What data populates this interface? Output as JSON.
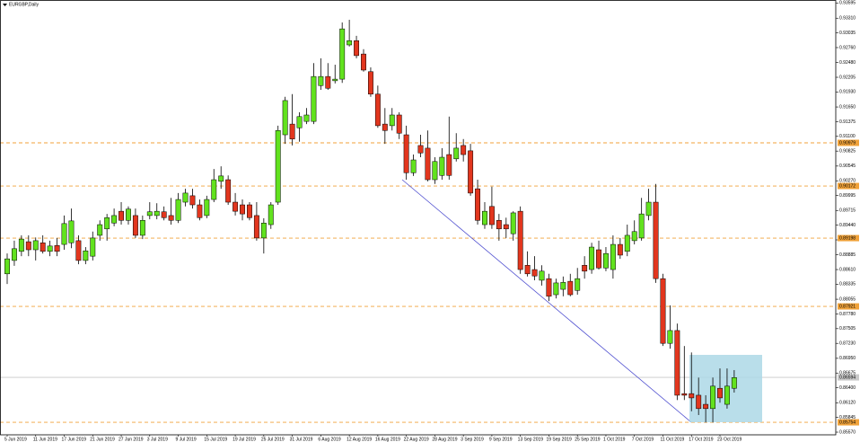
{
  "chart_data": {
    "type": "candlestick",
    "title": "EURGBP,Daily",
    "categories": [
      "5 Jun 2019",
      null,
      null,
      null,
      "11 Jun 2019",
      null,
      null,
      null,
      "17 Jun 2019",
      null,
      null,
      null,
      "21 Jun 2019",
      null,
      null,
      null,
      "27 Jun 2019",
      null,
      null,
      null,
      "3 Jul 2019",
      null,
      null,
      null,
      "9 Jul 2019",
      null,
      null,
      null,
      "15 Jul 2019",
      null,
      null,
      null,
      "19 Jul 2019",
      null,
      null,
      null,
      "25 Jul 2019",
      null,
      null,
      null,
      "31 Jul 2019",
      null,
      null,
      null,
      "6 Aug 2019",
      null,
      null,
      null,
      "12 Aug 2019",
      null,
      null,
      null,
      "16 Aug 2019",
      null,
      null,
      null,
      "22 Aug 2019",
      null,
      null,
      null,
      "28 Aug 2019",
      null,
      null,
      null,
      "3 Sep 2019",
      null,
      null,
      null,
      "9 Sep 2019",
      null,
      null,
      null,
      "13 Sep 2019",
      null,
      null,
      null,
      "19 Sep 2019",
      null,
      null,
      null,
      "25 Sep 2019",
      null,
      null,
      null,
      "1 Oct 2019",
      null,
      null,
      null,
      "7 Oct 2019",
      null,
      null,
      null,
      "11 Oct 2019",
      null,
      null,
      null,
      "17 Oct 2019",
      null,
      null,
      null,
      "23 Oct 2019",
      null,
      null
    ],
    "open": [
      0.8853,
      0.8878,
      0.8895,
      0.8913,
      0.8898,
      0.8911,
      0.8895,
      0.8906,
      0.8908,
      0.8911,
      0.8915,
      0.8878,
      0.8886,
      0.8925,
      0.8937,
      0.8948,
      0.897,
      0.8953,
      0.8962,
      0.8925,
      0.8962,
      0.8962,
      0.8969,
      0.8962,
      0.8953,
      0.8987,
      0.8999,
      0.8982,
      0.8962,
      0.8992,
      0.9026,
      0.9029,
      0.8987,
      0.8982,
      0.8982,
      0.8962,
      0.892,
      0.8945,
      0.8987,
      0.9113,
      0.9133,
      0.9126,
      0.9138,
      0.9138,
      0.9205,
      0.9222,
      0.9214,
      0.9217,
      0.9281,
      0.9289,
      0.9264,
      0.9231,
      0.9189,
      0.9133,
      0.913,
      0.915,
      0.9113,
      0.9042,
      0.9093,
      0.9088,
      0.9029,
      0.9037,
      0.9076,
      0.9068,
      0.9093,
      0.9083,
      0.9012,
      0.8945,
      0.8979,
      0.8953,
      0.8945,
      0.8928,
      0.897,
      0.8869,
      0.8861,
      0.8841,
      0.8844,
      0.8814,
      0.8824,
      0.8839,
      0.8822,
      0.8869,
      0.8861,
      0.8898,
      0.8864,
      0.8861,
      0.8908,
      0.8895,
      0.8915,
      0.892,
      0.8962,
      0.8987,
      0.8844,
      0.8723,
      0.8747,
      0.8629,
      0.8629,
      0.8626,
      0.8609,
      0.8601,
      0.8639,
      0.8609,
      0.8639
    ],
    "high": [
      0.8891,
      0.8915,
      0.8925,
      0.8925,
      0.8921,
      0.8925,
      0.8915,
      0.892,
      0.8962,
      0.8975,
      0.8925,
      0.8903,
      0.8932,
      0.8953,
      0.8965,
      0.8975,
      0.8987,
      0.8979,
      0.8975,
      0.8962,
      0.8987,
      0.8985,
      0.8979,
      0.8995,
      0.9004,
      0.9012,
      0.9012,
      0.8992,
      0.8999,
      0.9049,
      0.9054,
      0.9037,
      0.9004,
      0.8992,
      0.8987,
      0.8987,
      0.8957,
      0.8987,
      0.913,
      0.9184,
      0.9189,
      0.9155,
      0.9163,
      0.9247,
      0.9256,
      0.9247,
      0.9244,
      0.9323,
      0.9328,
      0.9298,
      0.9273,
      0.9239,
      0.9205,
      0.9163,
      0.9163,
      0.9155,
      0.913,
      0.9076,
      0.9113,
      0.9121,
      0.9071,
      0.9088,
      0.9147,
      0.9116,
      0.9105,
      0.9096,
      0.9029,
      0.8987,
      0.9016,
      0.8965,
      0.8958,
      0.897,
      0.8979,
      0.8895,
      0.8886,
      0.8869,
      0.8853,
      0.8844,
      0.8848,
      0.8853,
      0.8864,
      0.8886,
      0.8911,
      0.8915,
      0.8903,
      0.8925,
      0.892,
      0.8945,
      0.8953,
      0.8995,
      0.9012,
      0.9021,
      0.8853,
      0.8794,
      0.876,
      0.8718,
      0.8706,
      0.8659,
      0.8626,
      0.8659,
      0.8676,
      0.8676,
      0.8673
    ],
    "low": [
      0.8834,
      0.8868,
      0.8886,
      0.8886,
      0.8878,
      0.8891,
      0.8886,
      0.8886,
      0.8898,
      0.8901,
      0.8871,
      0.8871,
      0.8878,
      0.8915,
      0.8915,
      0.8942,
      0.8945,
      0.8945,
      0.892,
      0.8918,
      0.8955,
      0.8955,
      0.8953,
      0.8945,
      0.8948,
      0.8979,
      0.8975,
      0.8953,
      0.8957,
      0.8987,
      0.9012,
      0.8982,
      0.8962,
      0.8953,
      0.8953,
      0.8915,
      0.8891,
      0.8937,
      0.8982,
      0.9096,
      0.9093,
      0.91,
      0.9133,
      0.9133,
      0.9197,
      0.9197,
      0.9209,
      0.921,
      0.9278,
      0.9256,
      0.9231,
      0.9184,
      0.9126,
      0.9096,
      0.9121,
      0.9105,
      0.9029,
      0.9036,
      0.9071,
      0.9026,
      0.9021,
      0.9029,
      0.9029,
      0.9063,
      0.9063,
      0.8999,
      0.8945,
      0.8937,
      0.8937,
      0.8915,
      0.892,
      0.8915,
      0.8853,
      0.8848,
      0.8841,
      0.8831,
      0.8802,
      0.8807,
      0.8811,
      0.8811,
      0.8814,
      0.8844,
      0.8853,
      0.8861,
      0.8858,
      0.8844,
      0.8881,
      0.8886,
      0.8908,
      0.8915,
      0.8953,
      0.8836,
      0.8718,
      0.8713,
      0.8617,
      0.8617,
      0.8596,
      0.8589,
      0.8575,
      0.8575,
      0.8612,
      0.8601,
      0.8631
    ],
    "close": [
      0.8881,
      0.89,
      0.8918,
      0.8898,
      0.8915,
      0.8895,
      0.8905,
      0.8895,
      0.8947,
      0.8952,
      0.8878,
      0.8896,
      0.892,
      0.8945,
      0.8958,
      0.8962,
      0.8953,
      0.8974,
      0.8925,
      0.8953,
      0.8969,
      0.897,
      0.8958,
      0.8953,
      0.8992,
      0.9004,
      0.8982,
      0.8958,
      0.8992,
      0.9029,
      0.9036,
      0.8987,
      0.897,
      0.8965,
      0.8958,
      0.892,
      0.8948,
      0.8982,
      0.9121,
      0.9177,
      0.9105,
      0.9147,
      0.915,
      0.9222,
      0.9222,
      0.92,
      0.9217,
      0.9311,
      0.9289,
      0.9261,
      0.9234,
      0.9189,
      0.913,
      0.9121,
      0.915,
      0.9116,
      0.9042,
      0.9066,
      0.9079,
      0.9029,
      0.9063,
      0.9071,
      0.9037,
      0.9088,
      0.9076,
      0.9004,
      0.8953,
      0.897,
      0.8945,
      0.8937,
      0.8937,
      0.8967,
      0.8861,
      0.8853,
      0.8849,
      0.8858,
      0.8811,
      0.8836,
      0.8837,
      0.8814,
      0.8844,
      0.8858,
      0.8903,
      0.8864,
      0.8891,
      0.8908,
      0.8888,
      0.8925,
      0.8932,
      0.8965,
      0.8987,
      0.8844,
      0.8723,
      0.8747,
      0.8626,
      0.8626,
      0.8621,
      0.8601,
      0.8601,
      0.8643,
      0.8621,
      0.8643,
      0.8659
    ],
    "up_color": "#62e21e",
    "down_color": "#e2361e",
    "ylim": [
      0.8552,
      0.9365
    ],
    "yticks": [
      0.93595,
      {
        "value": 0.9331,
        "label": "0.93310"
      },
      0.93035,
      {
        "value": 0.9276,
        "label": "0.92760"
      },
      {
        "value": 0.9248,
        "label": "0.92480"
      },
      0.92205,
      {
        "value": 0.9193,
        "label": "0.91930"
      },
      {
        "value": 0.9165,
        "label": "0.91650"
      },
      0.91375,
      {
        "value": 0.911,
        "label": "0.91100"
      },
      0.90825,
      0.90545,
      {
        "value": 0.9027,
        "label": "0.90270"
      },
      0.89995,
      0.89715,
      {
        "value": 0.8944,
        "label": "0.89440"
      },
      0.89165,
      0.88885,
      {
        "value": 0.8861,
        "label": "0.88610"
      },
      0.88335,
      0.88055,
      {
        "value": 0.8778,
        "label": "0.87780"
      },
      0.87505,
      {
        "value": 0.8723,
        "label": "0.87230"
      },
      {
        "value": 0.8695,
        "label": "0.86950"
      },
      0.86675,
      {
        "value": 0.864,
        "label": "0.86400"
      },
      {
        "value": 0.8612,
        "label": "0.86120"
      },
      0.85845,
      {
        "value": 0.8557,
        "label": "0.85570"
      }
    ],
    "levels": [
      0.90979,
      0.90172,
      0.89198,
      0.87921,
      0.85754
    ],
    "level_color": "#f0a23a",
    "bid": 0.86594
  }
}
